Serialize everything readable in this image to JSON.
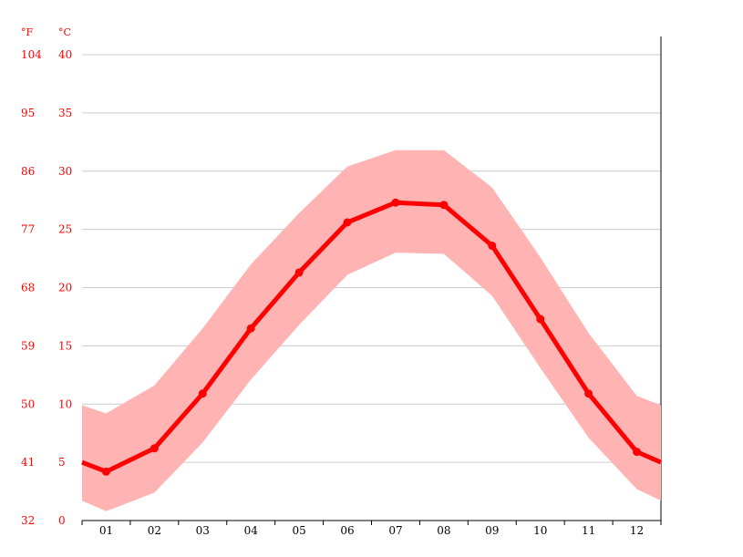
{
  "chart_data": {
    "type": "line",
    "title": "",
    "xlabel": "",
    "ylabel": "",
    "units": {
      "fahrenheit": "°F",
      "celsius": "°C"
    },
    "categories": [
      "01",
      "02",
      "03",
      "04",
      "05",
      "06",
      "07",
      "08",
      "09",
      "10",
      "11",
      "12"
    ],
    "ylim": [
      0,
      40
    ],
    "y_ticks_c": [
      "0",
      "5",
      "10",
      "15",
      "20",
      "25",
      "30",
      "35",
      "40"
    ],
    "y_ticks_f": [
      "32",
      "41",
      "50",
      "59",
      "68",
      "77",
      "86",
      "95",
      "104"
    ],
    "grid": true,
    "series": [
      {
        "role": "mean",
        "values": [
          4.2,
          6.2,
          10.9,
          16.5,
          21.3,
          25.6,
          27.3,
          27.1,
          23.6,
          17.3,
          10.9,
          5.9
        ]
      },
      {
        "role": "max",
        "values": [
          9.2,
          11.6,
          16.5,
          22.0,
          26.4,
          30.4,
          31.8,
          31.8,
          28.6,
          22.6,
          16.1,
          10.7
        ]
      },
      {
        "role": "min",
        "values": [
          0.8,
          2.4,
          6.7,
          12.1,
          16.8,
          21.1,
          23.0,
          22.9,
          19.3,
          13.1,
          7.1,
          2.7
        ]
      }
    ],
    "edge_values": {
      "mean": [
        5.0,
        5.0
      ],
      "max": [
        9.9,
        9.9
      ],
      "min": [
        1.7,
        1.7
      ]
    },
    "colors": {
      "line": "#ff0000",
      "band": "#ffb3b3",
      "grid": "#cccccc",
      "tick_label": "#ff0000"
    }
  }
}
